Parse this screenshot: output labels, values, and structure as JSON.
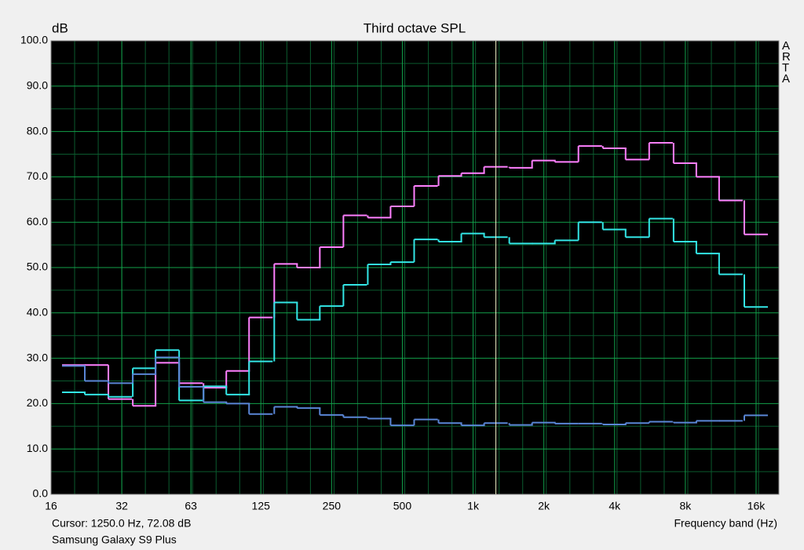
{
  "chart_data": {
    "type": "step",
    "title": "Third octave SPL",
    "y_label": "dB",
    "x_label": "Frequency band (Hz)",
    "side_label": "ARTA",
    "cursor": {
      "x": 1250,
      "label": "Cursor:  1250.0 Hz, 72.08 dB"
    },
    "caption": "Samsung Galaxy S9 Plus",
    "log_x": true,
    "grid": true,
    "x": [
      20,
      25,
      31.5,
      40,
      50,
      63,
      80,
      100,
      125,
      160,
      200,
      250,
      315,
      400,
      500,
      630,
      800,
      1000,
      1250,
      1600,
      2000,
      2500,
      3150,
      4000,
      5000,
      6300,
      8000,
      10000,
      12500,
      16000
    ],
    "series": [
      {
        "color": "#ff80ff",
        "values": [
          28.5,
          28.5,
          21.0,
          19.5,
          29.0,
          24.5,
          23.5,
          27.2,
          39.0,
          50.8,
          50.0,
          54.5,
          61.5,
          61.0,
          63.5,
          68.0,
          70.2,
          70.8,
          72.2,
          72.0,
          73.6,
          73.3,
          76.8,
          76.3,
          73.8,
          77.5,
          73.0,
          70.0,
          64.8,
          57.3
        ]
      },
      {
        "color": "#33e6e6",
        "values": [
          22.5,
          22.0,
          21.5,
          27.8,
          31.8,
          20.7,
          23.8,
          22.0,
          29.3,
          42.3,
          38.5,
          41.5,
          46.2,
          50.7,
          51.2,
          56.2,
          55.7,
          57.5,
          56.7,
          55.3,
          55.3,
          56.0,
          60.0,
          58.4,
          56.7,
          60.8,
          55.7,
          53.1,
          48.5,
          41.3
        ]
      },
      {
        "color": "#5a86d6",
        "values": [
          28.3,
          25.0,
          24.5,
          26.5,
          30.2,
          23.7,
          20.3,
          20.0,
          17.7,
          19.3,
          19.0,
          17.5,
          17.0,
          16.7,
          15.2,
          16.5,
          15.7,
          15.2,
          15.7,
          15.3,
          15.8,
          15.6,
          15.6,
          15.4,
          15.7,
          16.0,
          15.8,
          16.2,
          16.2,
          17.4
        ]
      }
    ],
    "xlim": [
      16,
      20000
    ],
    "xticks": [
      16,
      32,
      63,
      125,
      250,
      500,
      {
        "value": 1000,
        "label": "1k"
      },
      {
        "value": 2000,
        "label": "2k"
      },
      {
        "value": 4000,
        "label": "4k"
      },
      {
        "value": 8000,
        "label": "8k"
      },
      {
        "value": 16000,
        "label": "16k"
      }
    ],
    "ylim": [
      0,
      100
    ],
    "yticks": [
      {
        "value": 0,
        "label": "0.0"
      },
      {
        "value": 10,
        "label": "10.0"
      },
      {
        "value": 20,
        "label": "20.0"
      },
      {
        "value": 30,
        "label": "30.0"
      },
      {
        "value": 40,
        "label": "40.0"
      },
      {
        "value": 50,
        "label": "50.0"
      },
      {
        "value": 60,
        "label": "60.0"
      },
      {
        "value": 70,
        "label": "70.0"
      },
      {
        "value": 80,
        "label": "80.0"
      },
      {
        "value": 90,
        "label": "90.0"
      },
      {
        "value": 100,
        "label": "100.0"
      }
    ]
  }
}
